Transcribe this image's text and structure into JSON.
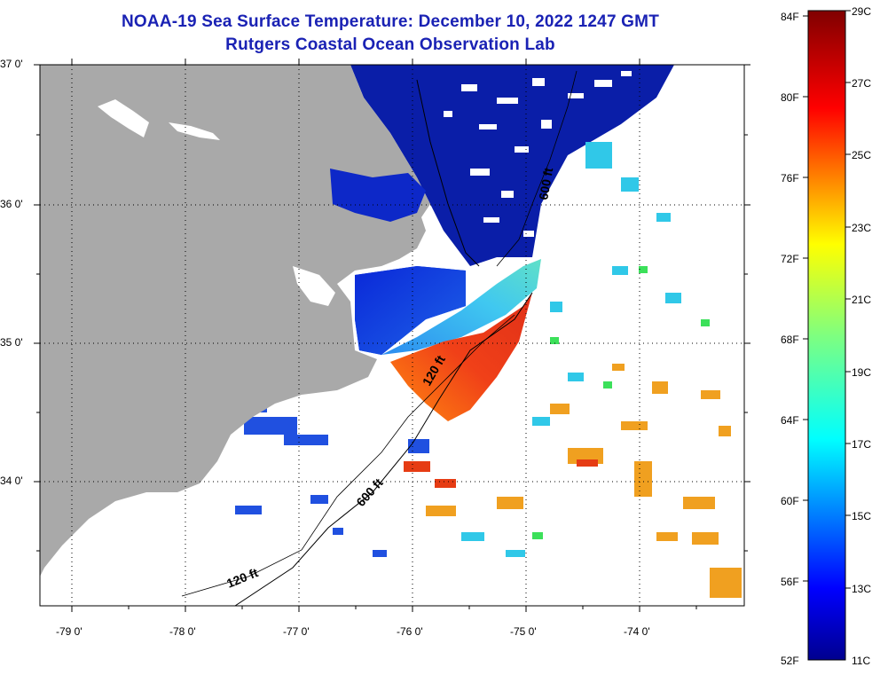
{
  "header": {
    "title": "NOAA-19 Sea Surface Temperature:  December 10, 2022 1247 GMT",
    "subtitle": "Rutgers Coastal Ocean Observation Lab"
  },
  "map": {
    "lat_labels": [
      "37 0'",
      "36 0'",
      "35 0'",
      "34 0'"
    ],
    "lon_labels": [
      "-79 0'",
      "-78 0'",
      "-77 0'",
      "-76 0'",
      "-75 0'",
      "-74 0'"
    ],
    "lat_range": [
      33.15,
      37.0
    ],
    "lon_range": [
      -79.28,
      -73.06
    ],
    "isobaths": [
      {
        "label": "120 ft",
        "note": "inner shelf contour"
      },
      {
        "label": "600 ft",
        "note": "shelf break contour"
      }
    ],
    "isobath_labels": [
      "120 ft",
      "120 ft",
      "600 ft",
      "600 ft"
    ],
    "land_color": "#a9a9a9",
    "no_data_color": "#ffffff"
  },
  "legend": {
    "fahrenheit": [
      "84F",
      "80F",
      "76F",
      "72F",
      "68F",
      "64F",
      "60F",
      "56F",
      "52F"
    ],
    "celsius": [
      "29C",
      "27C",
      "25C",
      "23C",
      "21C",
      "19C",
      "17C",
      "15C",
      "13C",
      "11C"
    ],
    "range_f": [
      52,
      84
    ],
    "range_c": [
      11,
      29
    ]
  },
  "colors": {
    "title": "#1a22b4",
    "cold": "#0000a0",
    "warm": "#e63c14"
  }
}
